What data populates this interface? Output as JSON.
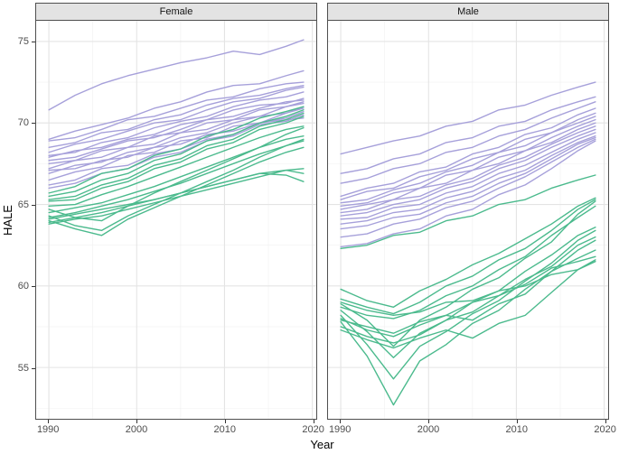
{
  "chart_data": {
    "type": "line",
    "title": "",
    "xlabel": "Year",
    "ylabel": "HALE",
    "xlim": [
      1988.55,
      2020.45
    ],
    "ylim": [
      51.85,
      76.27
    ],
    "xticks": [
      1990,
      2000,
      2010,
      2020
    ],
    "yticks": [
      55,
      60,
      65,
      70,
      75
    ],
    "xticks_minor": [
      1995,
      2005,
      2015
    ],
    "yticks_minor": [
      52.5,
      57.5,
      62.5,
      67.5,
      72.5
    ],
    "grid": true,
    "legend_position": "none",
    "colors": {
      "purple": "#a6a0da",
      "green": "#4bba8d"
    },
    "theme": {
      "strip_fill": "#e3e3e3",
      "strip_border": "#4f4f4f",
      "panel_border": "#4f4f4f",
      "grid_major": "#e4e4e4",
      "grid_minor": "#f0f0f0",
      "tick_color": "#333333",
      "tick_label_color": "#4d4d4d"
    },
    "x": [
      1990,
      1993,
      1996,
      1999,
      2002,
      2005,
      2008,
      2011,
      2014,
      2017,
      2019
    ],
    "facets": [
      {
        "label": "Female",
        "series": [
          {
            "color": "purple",
            "values": [
              70.8,
              71.7,
              72.4,
              72.9,
              73.3,
              73.7,
              74.0,
              74.4,
              74.2,
              74.7,
              75.1
            ]
          },
          {
            "color": "purple",
            "values": [
              69.0,
              69.5,
              69.9,
              70.3,
              70.9,
              71.3,
              71.9,
              72.3,
              72.4,
              72.9,
              73.2
            ]
          },
          {
            "color": "purple",
            "values": [
              68.9,
              69.1,
              69.6,
              70.2,
              70.4,
              70.9,
              71.4,
              71.6,
              72.1,
              72.4,
              72.5
            ]
          },
          {
            "color": "purple",
            "values": [
              68.5,
              68.8,
              69.4,
              69.6,
              70.2,
              70.5,
              71.1,
              71.5,
              71.7,
              72.1,
              72.3
            ]
          },
          {
            "color": "purple",
            "values": [
              68.2,
              68.7,
              69.0,
              69.5,
              70.0,
              70.2,
              70.8,
              71.3,
              71.5,
              72.0,
              72.2
            ]
          },
          {
            "color": "purple",
            "values": [
              68.0,
              68.2,
              68.8,
              69.1,
              69.7,
              70.1,
              70.4,
              71.0,
              71.4,
              71.6,
              71.9
            ]
          },
          {
            "color": "purple",
            "values": [
              67.9,
              68.3,
              68.5,
              69.0,
              69.3,
              69.9,
              70.2,
              70.8,
              71.1,
              71.2,
              71.5
            ]
          },
          {
            "color": "purple",
            "values": [
              67.7,
              67.9,
              68.4,
              68.9,
              69.1,
              69.6,
              70.2,
              70.4,
              70.9,
              71.3,
              71.4
            ]
          },
          {
            "color": "purple",
            "values": [
              67.5,
              67.7,
              68.3,
              68.5,
              69.2,
              69.4,
              70.0,
              70.2,
              70.8,
              71.0,
              71.3
            ]
          },
          {
            "color": "purple",
            "values": [
              67.2,
              67.7,
              67.9,
              68.5,
              68.7,
              69.4,
              69.6,
              70.2,
              70.4,
              71.0,
              71.2
            ]
          },
          {
            "color": "purple",
            "values": [
              66.9,
              67.4,
              67.6,
              68.2,
              68.5,
              69.1,
              69.4,
              70.0,
              70.4,
              70.6,
              71.0
            ]
          },
          {
            "color": "purple",
            "values": [
              66.5,
              67.0,
              67.3,
              68.0,
              68.2,
              68.9,
              69.1,
              69.8,
              70.0,
              70.6,
              70.9
            ]
          },
          {
            "color": "purple",
            "values": [
              66.2,
              66.5,
              67.2,
              67.4,
              68.1,
              68.4,
              69.0,
              69.3,
              70.0,
              70.3,
              70.7
            ]
          },
          {
            "color": "purple",
            "values": [
              66.0,
              66.3,
              66.9,
              67.2,
              67.9,
              68.2,
              68.9,
              69.2,
              69.9,
              70.1,
              70.5
            ]
          },
          {
            "color": "purple",
            "values": [
              67.1,
              67.2,
              67.7,
              67.9,
              68.5,
              68.7,
              69.3,
              69.5,
              70.0,
              70.2,
              70.3
            ]
          },
          {
            "color": "green",
            "values": [
              65.7,
              66.1,
              66.9,
              67.2,
              68.0,
              68.4,
              69.2,
              69.6,
              70.3,
              70.7,
              71.0
            ]
          },
          {
            "color": "green",
            "values": [
              65.5,
              65.8,
              66.5,
              66.9,
              67.7,
              68.1,
              68.9,
              69.3,
              70.0,
              70.4,
              70.8
            ]
          },
          {
            "color": "green",
            "values": [
              65.3,
              65.5,
              66.2,
              66.6,
              67.4,
              67.8,
              68.6,
              69.0,
              69.8,
              70.2,
              70.6
            ]
          },
          {
            "color": "green",
            "values": [
              65.2,
              65.3,
              66.0,
              66.4,
              67.2,
              67.6,
              68.4,
              68.8,
              69.6,
              70.0,
              70.4
            ]
          },
          {
            "color": "green",
            "values": [
              64.9,
              65.0,
              65.6,
              66.1,
              66.7,
              67.3,
              67.9,
              68.5,
              69.1,
              69.6,
              69.8
            ]
          },
          {
            "color": "green",
            "values": [
              64.7,
              64.2,
              64.0,
              64.9,
              65.7,
              66.4,
              67.1,
              67.8,
              68.5,
              69.3,
              69.7
            ]
          },
          {
            "color": "green",
            "values": [
              64.5,
              64.8,
              65.1,
              65.6,
              66.1,
              66.7,
              67.3,
              67.9,
              68.5,
              69.0,
              69.2
            ]
          },
          {
            "color": "green",
            "values": [
              64.3,
              63.7,
              63.4,
              64.3,
              65.0,
              65.7,
              66.4,
              67.1,
              67.9,
              68.6,
              69.0
            ]
          },
          {
            "color": "green",
            "values": [
              64.2,
              64.5,
              64.9,
              65.3,
              65.8,
              66.3,
              66.9,
              67.5,
              68.1,
              68.6,
              68.9
            ]
          },
          {
            "color": "green",
            "values": [
              64.0,
              63.5,
              63.1,
              64.1,
              64.8,
              65.5,
              66.2,
              66.9,
              67.6,
              68.2,
              68.5
            ]
          },
          {
            "color": "green",
            "values": [
              63.9,
              64.2,
              64.5,
              64.9,
              65.3,
              65.7,
              66.1,
              66.5,
              66.9,
              67.1,
              67.2
            ]
          },
          {
            "color": "green",
            "values": [
              63.8,
              64.1,
              64.3,
              64.7,
              65.1,
              65.5,
              65.9,
              66.3,
              66.7,
              67.1,
              66.9
            ]
          },
          {
            "color": "green",
            "values": [
              64.1,
              64.4,
              64.7,
              65.0,
              65.3,
              65.7,
              66.1,
              66.5,
              66.9,
              66.8,
              66.4
            ]
          }
        ]
      },
      {
        "label": "Male",
        "series": [
          {
            "color": "purple",
            "values": [
              68.1,
              68.5,
              68.9,
              69.2,
              69.8,
              70.1,
              70.8,
              71.1,
              71.7,
              72.2,
              72.5
            ]
          },
          {
            "color": "purple",
            "values": [
              66.9,
              67.2,
              67.8,
              68.1,
              68.8,
              69.1,
              69.8,
              70.1,
              70.8,
              71.3,
              71.6
            ]
          },
          {
            "color": "purple",
            "values": [
              66.3,
              66.6,
              67.2,
              67.5,
              68.2,
              68.5,
              69.2,
              69.6,
              70.3,
              70.9,
              71.3
            ]
          },
          {
            "color": "purple",
            "values": [
              65.5,
              66.0,
              66.3,
              67.0,
              67.3,
              68.1,
              68.5,
              69.3,
              69.7,
              70.5,
              70.9
            ]
          },
          {
            "color": "purple",
            "values": [
              65.3,
              65.8,
              66.0,
              66.7,
              67.1,
              67.8,
              68.2,
              69.0,
              69.4,
              70.2,
              70.6
            ]
          },
          {
            "color": "purple",
            "values": [
              65.1,
              65.3,
              65.9,
              66.3,
              67.0,
              67.4,
              68.2,
              68.6,
              69.4,
              70.0,
              70.4
            ]
          },
          {
            "color": "purple",
            "values": [
              64.9,
              65.1,
              65.7,
              66.0,
              66.8,
              67.1,
              67.9,
              68.3,
              69.1,
              69.8,
              70.2
            ]
          },
          {
            "color": "purple",
            "values": [
              64.7,
              65.0,
              65.3,
              66.0,
              66.3,
              67.1,
              67.5,
              68.3,
              68.8,
              69.6,
              70.0
            ]
          },
          {
            "color": "purple",
            "values": [
              64.5,
              64.7,
              65.3,
              65.5,
              66.2,
              66.6,
              67.4,
              67.9,
              68.7,
              69.4,
              69.8
            ]
          },
          {
            "color": "purple",
            "values": [
              64.3,
              64.5,
              65.0,
              65.3,
              66.0,
              66.4,
              67.2,
              67.7,
              68.5,
              69.2,
              69.6
            ]
          },
          {
            "color": "purple",
            "values": [
              64.1,
              64.2,
              64.8,
              65.0,
              65.7,
              66.1,
              66.9,
              67.4,
              68.2,
              69.0,
              69.4
            ]
          },
          {
            "color": "purple",
            "values": [
              63.8,
              64.0,
              64.5,
              64.7,
              65.4,
              65.8,
              66.6,
              67.1,
              68.0,
              68.8,
              69.2
            ]
          },
          {
            "color": "purple",
            "values": [
              63.5,
              63.7,
              64.2,
              64.4,
              65.1,
              65.5,
              66.3,
              66.9,
              67.8,
              68.7,
              69.1
            ]
          },
          {
            "color": "purple",
            "values": [
              63.0,
              63.2,
              63.8,
              64.1,
              64.8,
              65.2,
              66.0,
              66.7,
              67.6,
              68.5,
              69.0
            ]
          },
          {
            "color": "purple",
            "values": [
              62.4,
              62.6,
              63.2,
              63.5,
              64.3,
              64.7,
              65.6,
              66.2,
              67.2,
              68.3,
              68.9
            ]
          },
          {
            "color": "green",
            "values": [
              62.3,
              62.5,
              63.1,
              63.3,
              64.0,
              64.3,
              65.0,
              65.3,
              66.0,
              66.5,
              66.8
            ]
          },
          {
            "color": "green",
            "values": [
              59.8,
              59.1,
              58.7,
              59.7,
              60.4,
              61.3,
              62.0,
              62.9,
              63.8,
              64.9,
              65.4
            ]
          },
          {
            "color": "green",
            "values": [
              59.2,
              58.7,
              58.3,
              59.0,
              60.0,
              60.6,
              61.6,
              62.3,
              63.4,
              64.7,
              65.3
            ]
          },
          {
            "color": "green",
            "values": [
              58.9,
              57.9,
              56.3,
              57.9,
              58.7,
              59.8,
              60.5,
              61.7,
              62.7,
              64.4,
              65.2
            ]
          },
          {
            "color": "green",
            "values": [
              58.7,
              58.2,
              58.0,
              58.5,
              59.4,
              60.0,
              61.0,
              61.8,
              63.1,
              64.2,
              64.9
            ]
          },
          {
            "color": "green",
            "values": [
              58.5,
              57.2,
              55.6,
              57.1,
              57.9,
              59.0,
              59.7,
              60.9,
              61.9,
              63.1,
              63.6
            ]
          },
          {
            "color": "green",
            "values": [
              58.2,
              56.4,
              54.3,
              56.3,
              57.2,
              58.3,
              59.1,
              60.3,
              61.4,
              62.8,
              63.4
            ]
          },
          {
            "color": "green",
            "values": [
              57.8,
              55.7,
              52.7,
              55.4,
              56.4,
              57.7,
              58.5,
              59.8,
              60.9,
              61.7,
              62.2
            ]
          },
          {
            "color": "green",
            "values": [
              57.5,
              56.9,
              56.5,
              57.0,
              57.9,
              58.4,
              59.4,
              60.1,
              61.1,
              61.5,
              61.8
            ]
          },
          {
            "color": "green",
            "values": [
              57.3,
              56.7,
              56.2,
              56.8,
              57.3,
              56.8,
              57.7,
              58.2,
              59.6,
              61.0,
              61.6
            ]
          },
          {
            "color": "green",
            "values": [
              58.0,
              57.3,
              56.9,
              57.6,
              58.2,
              57.9,
              58.9,
              59.5,
              60.9,
              62.2,
              62.8
            ]
          },
          {
            "color": "green",
            "values": [
              57.9,
              57.5,
              57.1,
              57.8,
              58.2,
              59.0,
              59.4,
              60.4,
              61.2,
              62.5,
              63.0
            ]
          },
          {
            "color": "green",
            "values": [
              59.0,
              58.5,
              58.2,
              58.4,
              59.0,
              59.1,
              59.7,
              60.0,
              60.7,
              61.0,
              61.5
            ]
          }
        ]
      }
    ]
  }
}
